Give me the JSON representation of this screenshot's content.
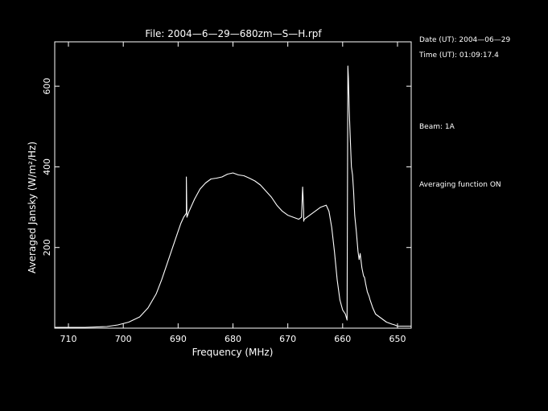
{
  "chart_data": {
    "type": "line",
    "title": "File: 2004—6—29—680zm—S—H.rpf",
    "xlabel": "Frequency (MHz)",
    "ylabel": "Averaged Jansky (W/m^2/Hz)",
    "xlim": [
      712.5,
      647.5
    ],
    "ylim": [
      0,
      710
    ],
    "x_ticks": [
      710,
      700,
      690,
      680,
      670,
      660,
      650
    ],
    "y_ticks": [
      200,
      400,
      600
    ],
    "x_tick_labels": [
      "710",
      "700",
      "690",
      "680",
      "670",
      "660",
      "650"
    ],
    "y_tick_labels": [
      "200",
      "400",
      "600"
    ],
    "grid": false,
    "color": "#ffffff",
    "series": [
      {
        "x": [
          712.5,
          707,
          703,
          701,
          699,
          697,
          695.5,
          694,
          693,
          692,
          691,
          690,
          689.5,
          689,
          688.5,
          688.5,
          688.4,
          688,
          687,
          686,
          685,
          684,
          683,
          682,
          681,
          680,
          679,
          678,
          677,
          676,
          675,
          674,
          673,
          672,
          671,
          670,
          669,
          668,
          667.5,
          667.3,
          667.1,
          667.1,
          667,
          666.5,
          665.5,
          664,
          663,
          662.5,
          662,
          661.5,
          661,
          660.5,
          660,
          659.5,
          659.2,
          659.05,
          658.95,
          658.8,
          658.6,
          658.4,
          658.2,
          658,
          657.8,
          657.5,
          657.2,
          657,
          656.8,
          656.5,
          656.2,
          656,
          655.8,
          655.5,
          655.2,
          655,
          654.5,
          654,
          653,
          652,
          651,
          650.5,
          650,
          649,
          647.5
        ],
        "y": [
          2,
          2,
          4,
          8,
          15,
          28,
          50,
          85,
          120,
          160,
          200,
          240,
          260,
          275,
          285,
          375,
          275,
          290,
          320,
          345,
          360,
          370,
          372,
          375,
          382,
          385,
          380,
          378,
          372,
          365,
          355,
          340,
          325,
          305,
          290,
          280,
          275,
          270,
          275,
          350,
          290,
          265,
          270,
          275,
          285,
          300,
          305,
          290,
          250,
          190,
          120,
          70,
          45,
          35,
          20,
          650,
          620,
          540,
          470,
          400,
          380,
          340,
          280,
          240,
          190,
          170,
          185,
          150,
          130,
          125,
          110,
          90,
          80,
          70,
          50,
          35,
          25,
          15,
          10,
          8,
          5,
          5,
          5
        ]
      }
    ]
  },
  "info": {
    "date": "Date (UT): 2004—06—29",
    "time": "Time (UT): 01:09:17.4",
    "beam": "Beam: 1A",
    "averaging": "Averaging function ON"
  }
}
